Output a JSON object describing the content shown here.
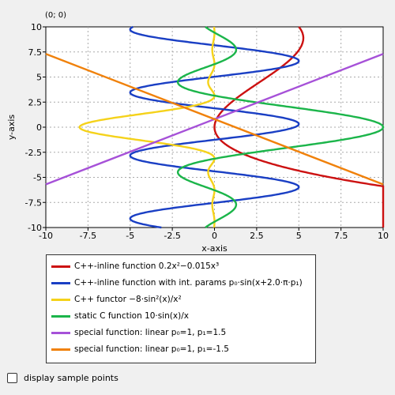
{
  "coord_readout": "(0; 0)",
  "chart_data": {
    "type": "line",
    "xlabel": "x-axis",
    "ylabel": "y-axis",
    "xlim": [
      -10,
      10
    ],
    "ylim": [
      -10,
      10
    ],
    "xticks": [
      "-10",
      "-7.5",
      "-5",
      "-2.5",
      "0",
      "2.5",
      "5",
      "7.5",
      "10"
    ],
    "yticks": [
      "10",
      "7.5",
      "5",
      "2.5",
      "0",
      "-2.5",
      "-5",
      "-7.5",
      "-10"
    ],
    "grid": true,
    "series": [
      {
        "name": "C++-inline function 0.2x²−0.015x³",
        "color": "#cc1111",
        "formula": "0.2*y*y - 0.015*y*y*y",
        "orientation": "parametric-y"
      },
      {
        "name": "C++-inline function with int. params p₀·sin(x+2.0·π·p₁)",
        "color": "#1a3fc4",
        "formula": "5*sin(y+2*pi*0.2)",
        "orientation": "parametric-y"
      },
      {
        "name": "C++ functor −8·sin²(x)/x²",
        "color": "#f5d21a",
        "formula": "-8*sin(y)^2/y^2",
        "orientation": "parametric-y"
      },
      {
        "name": "static C function 10·sin(x)/x",
        "color": "#1bb54a",
        "formula": "10*sin(y)/y",
        "orientation": "parametric-y"
      },
      {
        "name": "special function: linear p₀=1, p₁=1.5",
        "color": "#a651d8",
        "points": [
          [
            -10,
            -5.7
          ],
          [
            10,
            7.3
          ]
        ]
      },
      {
        "name": "special function: linear p₀=1, p₁=-1.5",
        "color": "#f0810a",
        "points": [
          [
            -10,
            7.3
          ],
          [
            10,
            -5.7
          ]
        ]
      }
    ]
  },
  "legend_rows": [
    "C++-inline function 0.2x²−0.015x³",
    "C++-inline function with int. params p₀·sin(x+2.0·π·p₁)",
    "C++ functor −8·sin²(x)/x²",
    "static C function 10·sin(x)/x",
    "special function: linear p₀=1, p₁=1.5",
    "special function: linear p₀=1, p₁=-1.5"
  ],
  "checkbox": {
    "label": "display sample points",
    "checked": false
  }
}
